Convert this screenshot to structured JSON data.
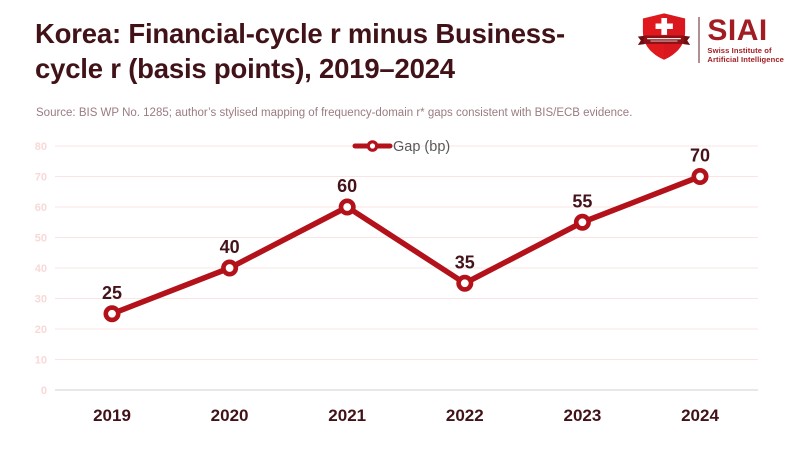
{
  "header": {
    "title_lines": [
      "Korea: Financial-cycle r minus Business-",
      "cycle r (basis points), 2019–2024"
    ],
    "source": "Source: BIS WP No. 1285; author’s stylised mapping of frequency-domain r* gaps consistent with BIS/ECB evidence."
  },
  "logo": {
    "acronym": "SIAI",
    "subtitle_lines": [
      "Swiss Institute of",
      "Artificial Intelligence"
    ]
  },
  "chart_data": {
    "type": "line",
    "title": "Korea: Financial-cycle r minus Business-cycle r (basis points), 2019–2024",
    "categories": [
      "2019",
      "2020",
      "2021",
      "2022",
      "2023",
      "2024"
    ],
    "series": [
      {
        "name": "Gap (bp)",
        "values": [
          25,
          40,
          60,
          35,
          55,
          70
        ]
      }
    ],
    "xlabel": "",
    "ylabel": "",
    "ylim": [
      0,
      80
    ],
    "ytick_step": 10,
    "grid": true,
    "show_data_labels": true,
    "legend_position": "top-center",
    "colors": {
      "line": "#b4121a",
      "marker_fill": "#ffffff",
      "value_label": "#45131b",
      "axis_category_label": "#411318",
      "grid": "#fbe4e4",
      "axis_line": "#d9d9d9",
      "tick_label": "#f8d9d9",
      "legend_text": "#595959"
    }
  },
  "theme": {
    "title_color": "#411318",
    "source_color": "#9a7c80",
    "logo_red": "#a11d23",
    "shield_red": "#e0191f",
    "ribbon_red": "#8a1216",
    "background": "#ffffff"
  }
}
